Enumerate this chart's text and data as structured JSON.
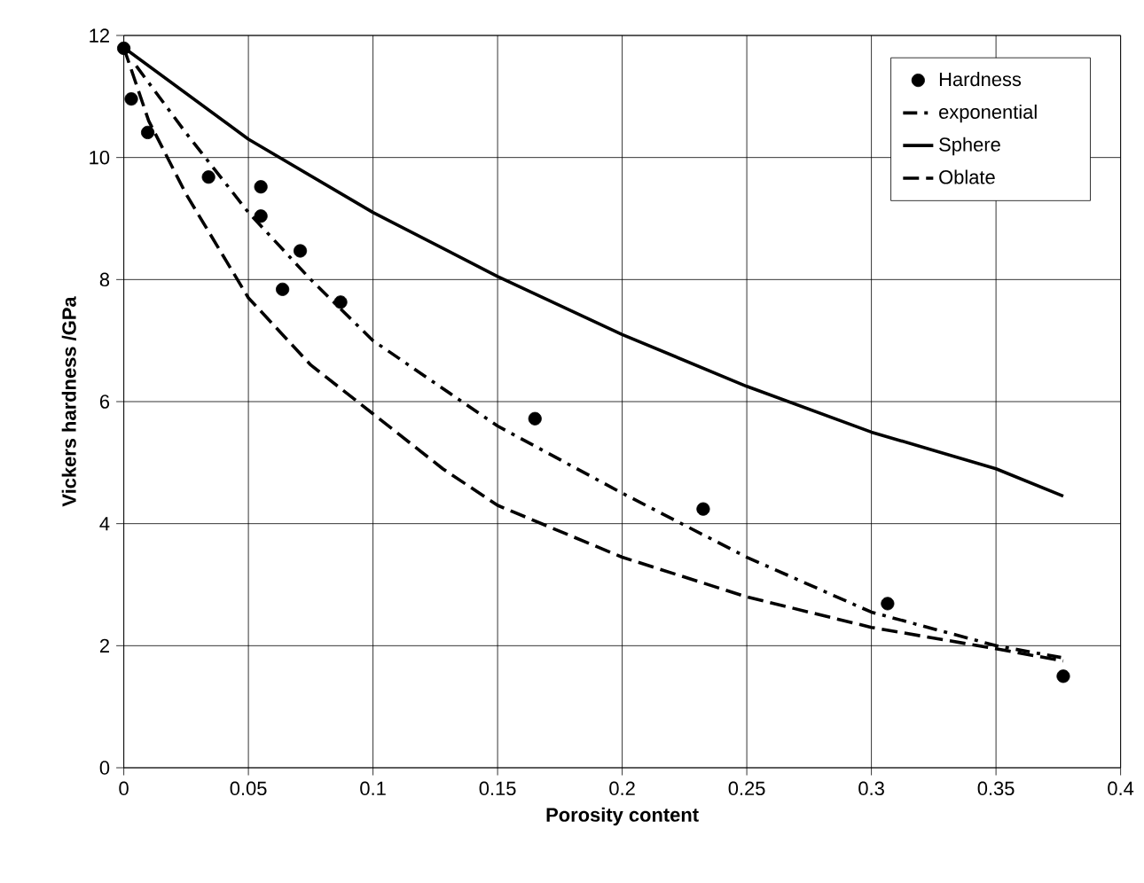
{
  "chart_data": {
    "type": "line",
    "xlabel": "Porosity content",
    "ylabel": "Vickers hardness     /GPa",
    "xlim": [
      0,
      0.4
    ],
    "xticks": [
      0,
      0.05,
      0.1,
      0.15,
      0.2,
      0.25,
      0.3,
      0.35,
      0.4
    ],
    "ylim": [
      0,
      12
    ],
    "yticks": [
      0,
      2,
      4,
      6,
      8,
      10,
      12
    ],
    "grid": true,
    "legend": "top right",
    "series": [
      {
        "name": "Hardness",
        "type": "scatter",
        "marker": "circle",
        "color": "#000000",
        "x": [
          0,
          0.003,
          0.0096,
          0.034,
          0.055,
          0.055,
          0.0637,
          0.0708,
          0.087,
          0.165,
          0.2325,
          0.3065,
          0.377
        ],
        "values": [
          11.79,
          10.96,
          10.41,
          9.68,
          9.52,
          9.04,
          7.84,
          8.47,
          7.63,
          5.72,
          4.24,
          2.69,
          1.5
        ]
      },
      {
        "name": "exponential",
        "line_style": "dashdot",
        "color": "#000000",
        "x": [
          0.005,
          0.025,
          0.05,
          0.075,
          0.1,
          0.15,
          0.2,
          0.25,
          0.3,
          0.35,
          0.377
        ],
        "values": [
          11.5,
          10.4,
          9.1,
          8.0,
          7.0,
          5.6,
          4.5,
          3.45,
          2.55,
          2.0,
          1.8
        ]
      },
      {
        "name": "Sphere",
        "line_style": "solid",
        "color": "#000000",
        "x": [
          0,
          0.05,
          0.1,
          0.15,
          0.2,
          0.25,
          0.3,
          0.35,
          0.377
        ],
        "values": [
          11.8,
          10.3,
          9.1,
          8.05,
          7.1,
          6.25,
          5.5,
          4.9,
          4.45
        ]
      },
      {
        "name": "Oblate",
        "line_style": "dashed",
        "color": "#000000",
        "x": [
          0,
          0.01,
          0.025,
          0.05,
          0.075,
          0.1,
          0.128,
          0.15,
          0.2,
          0.25,
          0.3,
          0.35,
          0.377
        ],
        "values": [
          11.8,
          10.6,
          9.4,
          7.7,
          6.6,
          5.8,
          4.9,
          4.3,
          3.45,
          2.8,
          2.3,
          1.95,
          1.75
        ]
      }
    ]
  }
}
